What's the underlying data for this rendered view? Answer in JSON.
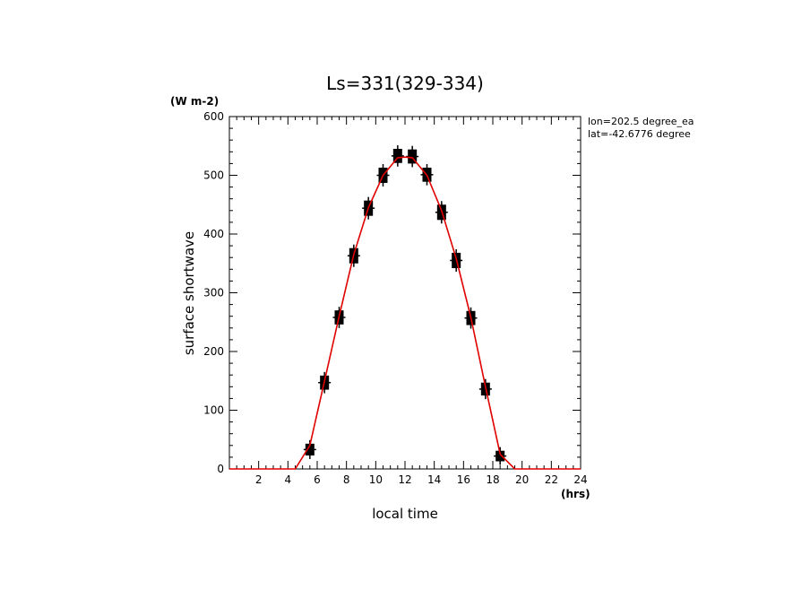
{
  "chart_data": {
    "type": "line",
    "title": "Ls=331(329-334)",
    "ylabel": "surface shortwave",
    "yunit": "(W m-2)",
    "xlabel": "local time",
    "xunit": "(hrs)",
    "annotations": [
      "lon=202.5 degree_ea",
      "lat=-42.6776 degree"
    ],
    "xlim": [
      0,
      24
    ],
    "ylim": [
      0,
      600
    ],
    "xticks": [
      2,
      4,
      6,
      8,
      10,
      12,
      14,
      16,
      18,
      20,
      22,
      24
    ],
    "yticks": [
      0,
      100,
      200,
      300,
      400,
      500,
      600
    ],
    "colors": {
      "model": "#e00000",
      "observations": "#000000"
    },
    "series": [
      {
        "kind": "line",
        "x": [
          0,
          0.5,
          1.5,
          2.5,
          3.5,
          4.5,
          5.5,
          6.5,
          7.5,
          8.5,
          9.5,
          10.5,
          11.5,
          12,
          12.5,
          13.5,
          14.5,
          15.5,
          16.5,
          17.5,
          18.5,
          19.5,
          20.5,
          21.5,
          22.5,
          23.5,
          24
        ],
        "values": [
          0,
          0,
          0,
          0,
          0,
          0,
          40,
          150,
          260,
          365,
          445,
          500,
          530,
          531,
          530,
          500,
          440,
          358,
          258,
          140,
          25,
          0,
          0,
          0,
          0,
          0,
          0
        ]
      },
      {
        "kind": "scatter",
        "x": [
          5.5,
          6.5,
          7.5,
          8.5,
          9.5,
          10.5,
          11.5,
          12.5,
          13.5,
          14.5,
          15.5,
          16.5,
          17.5,
          18.5
        ],
        "values": [
          33,
          147,
          258,
          363,
          444,
          500,
          533,
          532,
          501,
          437,
          355,
          257,
          136,
          22
        ],
        "spread": [
          10,
          12,
          12,
          13,
          13,
          13,
          12,
          12,
          12,
          13,
          13,
          12,
          11,
          9
        ]
      }
    ]
  }
}
